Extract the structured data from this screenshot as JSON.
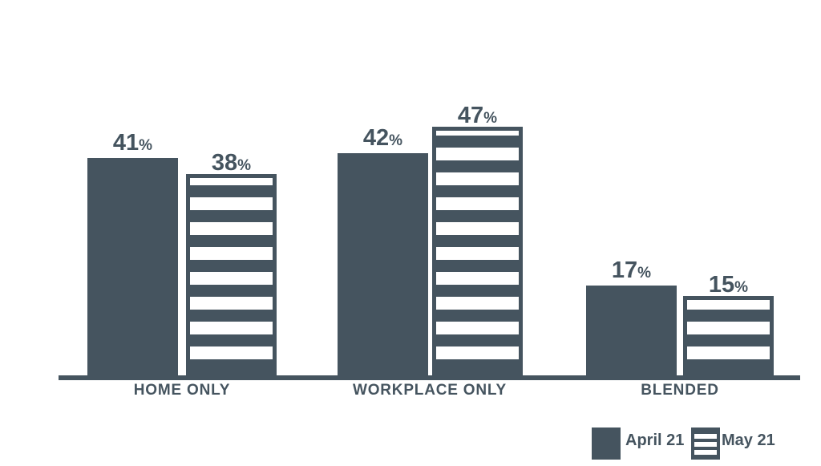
{
  "colors": {
    "ink": "#45545f",
    "background": "#ffffff"
  },
  "chart_data": {
    "type": "bar",
    "title": "",
    "xlabel": "",
    "ylabel": "",
    "categories": [
      "HOME ONLY",
      "WORKPLACE ONLY",
      "BLENDED"
    ],
    "series": [
      {
        "name": "April 21",
        "pattern": "solid",
        "values": [
          41,
          42,
          17
        ]
      },
      {
        "name": "May 21",
        "pattern": "striped",
        "values": [
          38,
          47,
          15
        ]
      }
    ],
    "value_suffix": "%",
    "ylim": [
      0,
      50
    ],
    "grid": false,
    "axis": "bottom-line-only",
    "legend_position": "bottom-right"
  },
  "legend": {
    "items": [
      {
        "label": "April 21",
        "swatch": "solid"
      },
      {
        "label": "May 21",
        "swatch": "striped"
      }
    ]
  }
}
